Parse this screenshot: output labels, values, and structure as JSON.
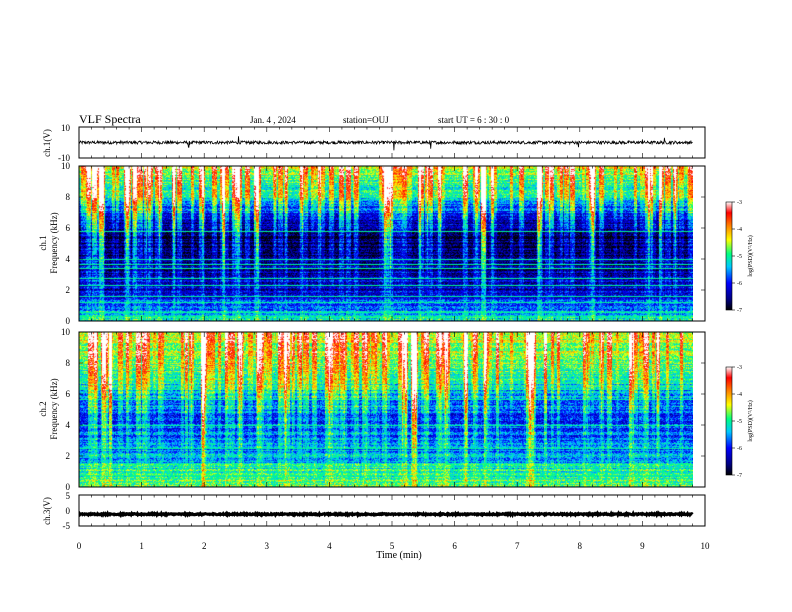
{
  "header": {
    "title": "VLF Spectra",
    "date": "Jan. 4 , 2024",
    "station": "station=OUJ",
    "start": "start UT = 6 : 30 : 0"
  },
  "chart_data": [
    {
      "type": "line",
      "panel": "ch1-waveform",
      "ylabel": "ch.1(V)",
      "ylim": [
        -10,
        10
      ],
      "y_ticks": [
        "10",
        "-10"
      ],
      "xlim": [
        0,
        10
      ],
      "baseline": 0,
      "noise_amplitude": 1,
      "spikes": [
        {
          "x": 2.55,
          "y": 4
        },
        {
          "x": 1.75,
          "y": -3
        },
        {
          "x": 5.03,
          "y": -5
        },
        {
          "x": 5.62,
          "y": -4
        },
        {
          "x": 7.98,
          "y": -3
        },
        {
          "x": 9.35,
          "y": 3
        },
        {
          "x": 9.0,
          "y": 2
        }
      ]
    },
    {
      "type": "heatmap",
      "panel": "ch1-spectrogram",
      "ylabel": "ch.1\nFrequency (kHz)",
      "ylabel_lines": [
        "ch.1",
        "Frequency (kHz)"
      ],
      "xlim": [
        0,
        10
      ],
      "ylim": [
        0,
        10
      ],
      "data_end_min": 9.8,
      "y_ticks": [
        "0",
        "2",
        "4",
        "6",
        "8",
        "10"
      ],
      "colorbar": {
        "label": "log(PSD)(V²/Hz)",
        "range": [
          -7,
          -3
        ],
        "ticks": [
          "-3",
          "-4",
          "-5",
          "-6",
          "-7"
        ],
        "colors": [
          "#000000",
          "#000080",
          "#0000ff",
          "#00c8ff",
          "#00ff80",
          "#ffff00",
          "#ff8000",
          "#ff0000",
          "#ffffff"
        ]
      },
      "profile_khz": [
        {
          "f": 0.0,
          "v": -5.2
        },
        {
          "f": 1.0,
          "v": -5.8
        },
        {
          "f": 2.0,
          "v": -6.3
        },
        {
          "f": 3.0,
          "v": -6.5
        },
        {
          "f": 4.0,
          "v": -6.7
        },
        {
          "f": 5.5,
          "v": -6.8
        },
        {
          "f": 7.0,
          "v": -6.0
        },
        {
          "f": 8.0,
          "v": -5.3
        },
        {
          "f": 9.0,
          "v": -4.9
        },
        {
          "f": 10.0,
          "v": -4.6
        }
      ],
      "line_freqs_khz": [
        0.3,
        0.6,
        1.2,
        1.6,
        2.3,
        2.8,
        3.4,
        3.7,
        4.0,
        5.8
      ]
    },
    {
      "type": "heatmap",
      "panel": "ch2-spectrogram",
      "ylabel": "ch.2\nFrequency (kHz)",
      "ylabel_lines": [
        "ch.2",
        "Frequency (kHz)"
      ],
      "xlim": [
        0,
        10
      ],
      "ylim": [
        0,
        10
      ],
      "data_end_min": 9.8,
      "y_ticks": [
        "0",
        "2",
        "4",
        "6",
        "8",
        "10"
      ],
      "colorbar": {
        "label": "log(PSD)(V²/Hz)",
        "range": [
          -7,
          -3
        ],
        "ticks": [
          "-3",
          "-4",
          "-5",
          "-6",
          "-7"
        ],
        "colors": [
          "#000000",
          "#000080",
          "#0000ff",
          "#00c8ff",
          "#00ff80",
          "#ffff00",
          "#ff8000",
          "#ff0000",
          "#ffffff"
        ]
      },
      "profile_khz": [
        {
          "f": 0.0,
          "v": -4.8
        },
        {
          "f": 1.0,
          "v": -5.0
        },
        {
          "f": 2.0,
          "v": -5.6
        },
        {
          "f": 3.0,
          "v": -5.7
        },
        {
          "f": 4.5,
          "v": -5.9
        },
        {
          "f": 6.0,
          "v": -5.5
        },
        {
          "f": 7.0,
          "v": -5.1
        },
        {
          "f": 8.5,
          "v": -4.7
        },
        {
          "f": 10.0,
          "v": -4.5
        }
      ],
      "line_freqs_khz": [
        0.8,
        1.5,
        2.5,
        4.0,
        5.7,
        6.3,
        7.0
      ]
    },
    {
      "type": "line",
      "panel": "ch3-waveform",
      "ylabel": "ch.3(V)",
      "ylim": [
        -5,
        5
      ],
      "y_ticks": [
        "5",
        "0",
        "-5"
      ],
      "xlim": [
        0,
        10
      ],
      "baseline": -1.2,
      "noise_amplitude": 0.2
    }
  ],
  "x_axis": {
    "label": "Time (min)",
    "ticks": [
      "0",
      "1",
      "2",
      "3",
      "4",
      "5",
      "6",
      "7",
      "8",
      "9",
      "10"
    ]
  }
}
